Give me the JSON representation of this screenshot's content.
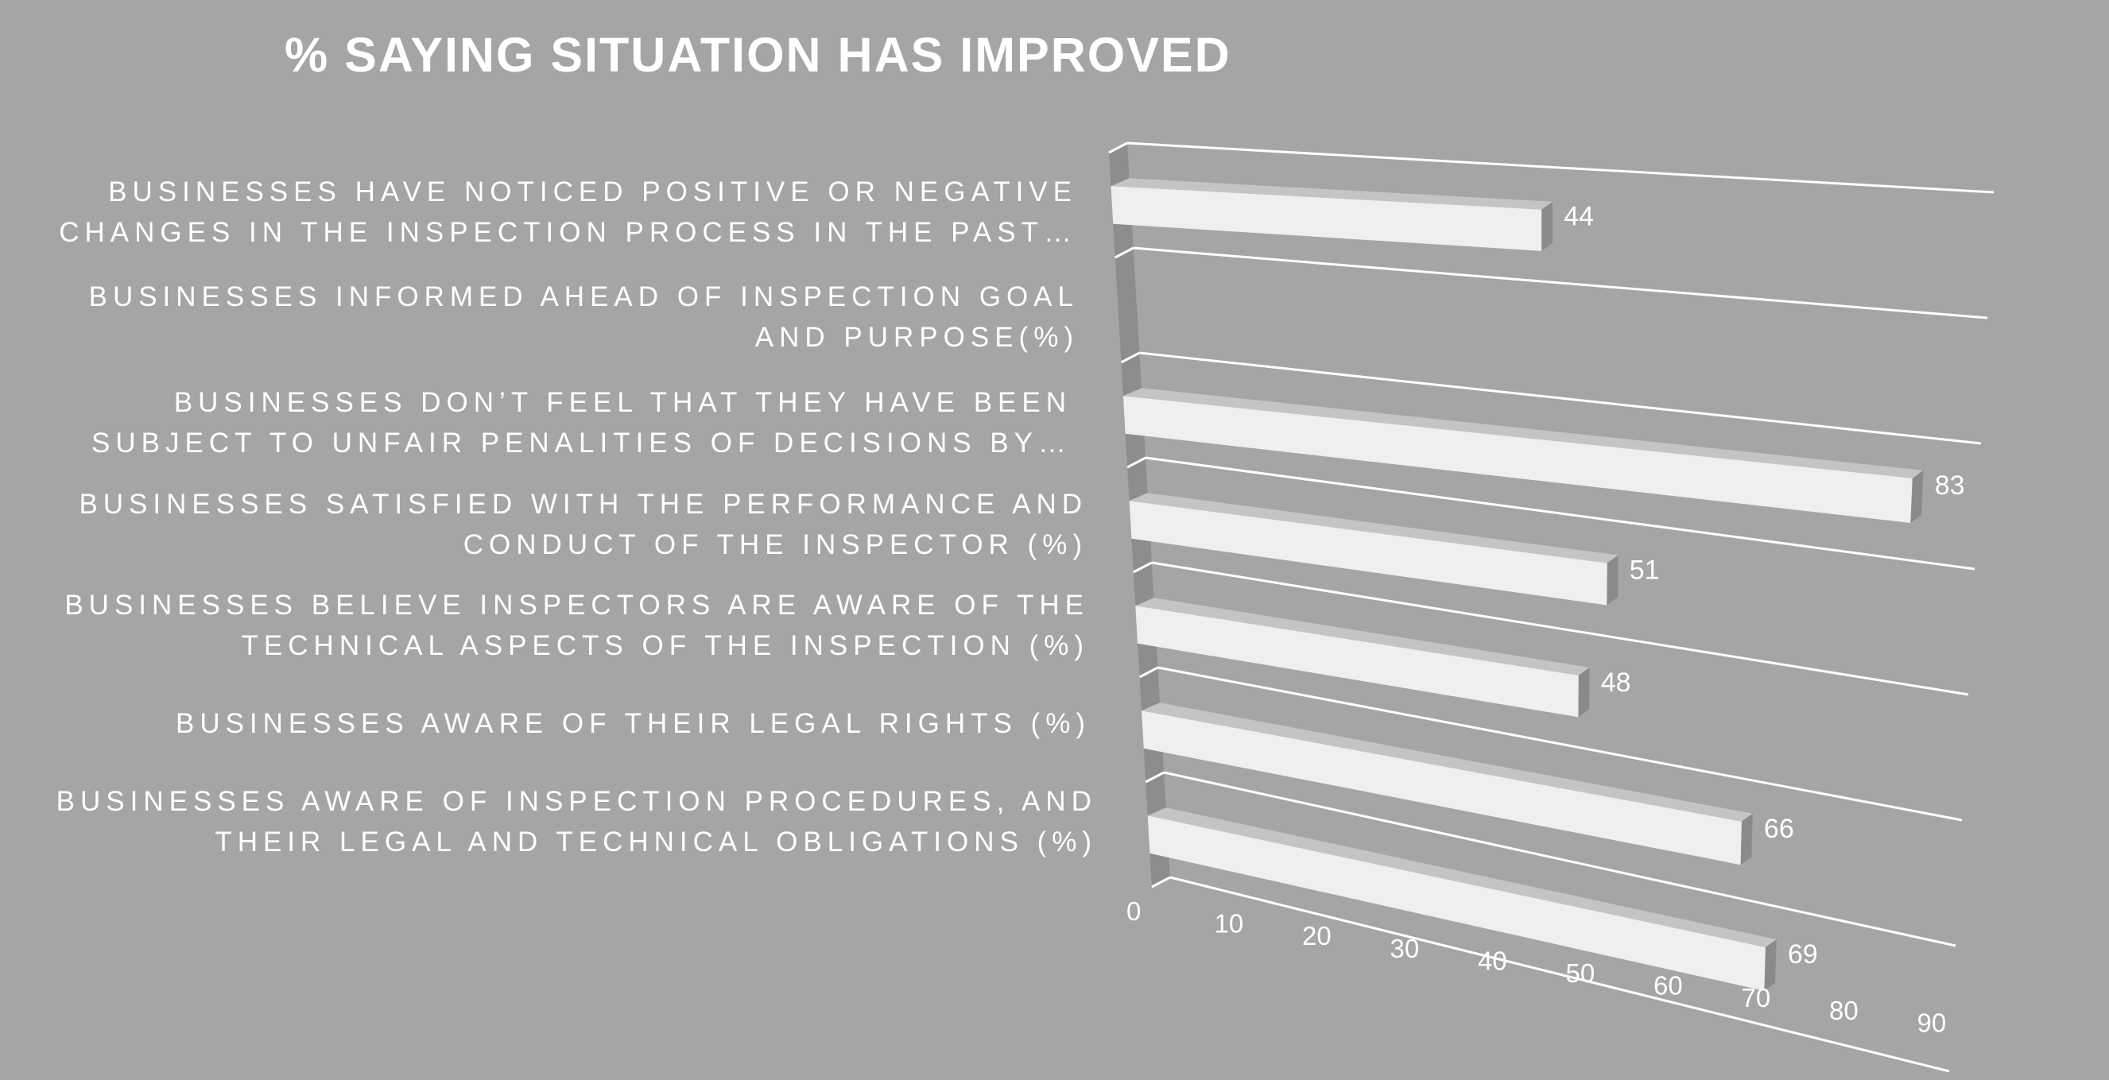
{
  "chart_data": {
    "type": "bar",
    "orientation": "horizontal",
    "style": "3d-perspective",
    "title": "% SAYING SITUATION HAS IMPROVED",
    "categories": [
      [
        "BUSINESSES HAVE NOTICED POSITIVE OR NEGATIVE",
        "CHANGES IN THE INSPECTION PROCESS IN THE PAST…"
      ],
      [
        "BUSINESSES INFORMED AHEAD OF INSPECTION GOAL",
        "AND PURPOSE(%)"
      ],
      [
        "BUSINESSES DON’T FEEL THAT THEY HAVE BEEN",
        "SUBJECT TO UNFAIR PENALITIES OF DECISIONS BY…"
      ],
      [
        "BUSINESSES SATISFIED WITH THE PERFORMANCE AND",
        "CONDUCT OF THE INSPECTOR (%)"
      ],
      [
        "BUSINESSES BELIEVE INSPECTORS ARE AWARE OF THE",
        "TECHNICAL ASPECTS OF THE INSPECTION (%)"
      ],
      [
        "BUSINESSES AWARE OF THEIR LEGAL RIGHTS (%)"
      ],
      [
        "BUSINESSES AWARE OF INSPECTION PROCEDURES, AND",
        "THEIR LEGAL AND TECHNICAL OBLIGATIONS (%)"
      ]
    ],
    "values": [
      44,
      null,
      83,
      51,
      48,
      66,
      69
    ],
    "xlim": [
      0,
      90
    ],
    "xticks": [
      "0",
      "10",
      "20",
      "30",
      "40",
      "50",
      "60",
      "70",
      "80",
      "90"
    ],
    "grid": true,
    "data_labels": true,
    "colors": {
      "background": "#a5a5a5",
      "bar_front": "#efefef",
      "bar_top": "#c4c4c4",
      "bar_side": "#8a8a8a",
      "wall": "#8d8d8d",
      "gridline": "#ffffff",
      "text": "#ffffff"
    }
  }
}
